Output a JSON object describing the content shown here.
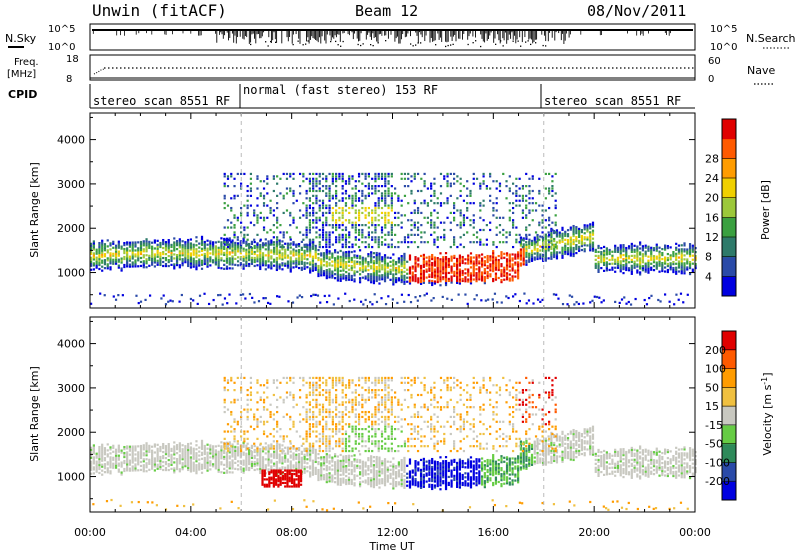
{
  "header": {
    "station": "Unwin (fitACF)",
    "beam": "Beam 12",
    "date": "08/Nov/2011"
  },
  "nsky_panel": {
    "left_label": "N.Sky",
    "right_label": "N.Search",
    "left_ticks": [
      "10^5",
      "10^0"
    ],
    "right_ticks": [
      "10^5",
      "10^0"
    ]
  },
  "freq_panel": {
    "left_label_1": "Freq.",
    "left_label_2": "[MHz]",
    "right_label": "Nave",
    "left_ticks": [
      "18",
      "8"
    ],
    "right_ticks": [
      "60",
      "0"
    ]
  },
  "cpid_panel": {
    "label": "CPID",
    "modes": [
      {
        "text": "stereo_scan 8551 RF",
        "start": 0,
        "end": 6
      },
      {
        "text": "normal (fast stereo) 153 RF",
        "start": 6,
        "end": 18
      },
      {
        "text": "stereo_scan 8551 RF",
        "start": 18,
        "end": 24
      }
    ]
  },
  "chart_data": [
    {
      "type": "heatmap",
      "title": "",
      "xlabel": "",
      "ylabel": "Slant Range [km]",
      "x_range_hours": [
        0,
        24
      ],
      "ylim": [
        200,
        4600
      ],
      "yticks": [
        "1000",
        "2000",
        "3000",
        "4000"
      ],
      "colorbar": {
        "label": "Power [dB]",
        "ticks": [
          "4",
          "8",
          "12",
          "16",
          "20",
          "24",
          "28"
        ],
        "colors": [
          "#0000e0",
          "#2a4aa8",
          "#2e7a6a",
          "#3aa040",
          "#9cc83a",
          "#f0d000",
          "#ff9c00",
          "#ff5a00",
          "#e00000"
        ]
      },
      "features": [
        {
          "desc_range_km": [
            1100,
            1500
          ],
          "x_hours": [
            0,
            24
          ],
          "level": "green-orange"
        },
        {
          "desc_range_km": [
            900,
            1300
          ],
          "x_hours": [
            13,
            17.5
          ],
          "level": "red"
        }
      ]
    },
    {
      "type": "heatmap",
      "title": "",
      "xlabel": "Time UT",
      "ylabel": "Slant Range [km]",
      "x_range_hours": [
        0,
        24
      ],
      "xticks": [
        "00:00",
        "04:00",
        "08:00",
        "12:00",
        "16:00",
        "20:00",
        "00:00"
      ],
      "ylim": [
        200,
        4600
      ],
      "yticks": [
        "1000",
        "2000",
        "3000",
        "4000"
      ],
      "colorbar": {
        "label": "Velocity [m s",
        "label_sup": "-1",
        "label_end": "]",
        "ticks": [
          "200",
          "100",
          "50",
          "15",
          "-15",
          "-50",
          "-100",
          "-200"
        ],
        "colors": [
          "#0000e0",
          "#2a4aa8",
          "#2e8a5a",
          "#66cc44",
          "#c8c8c0",
          "#f0c040",
          "#ff9c00",
          "#ff5a00",
          "#e00000"
        ]
      }
    }
  ]
}
